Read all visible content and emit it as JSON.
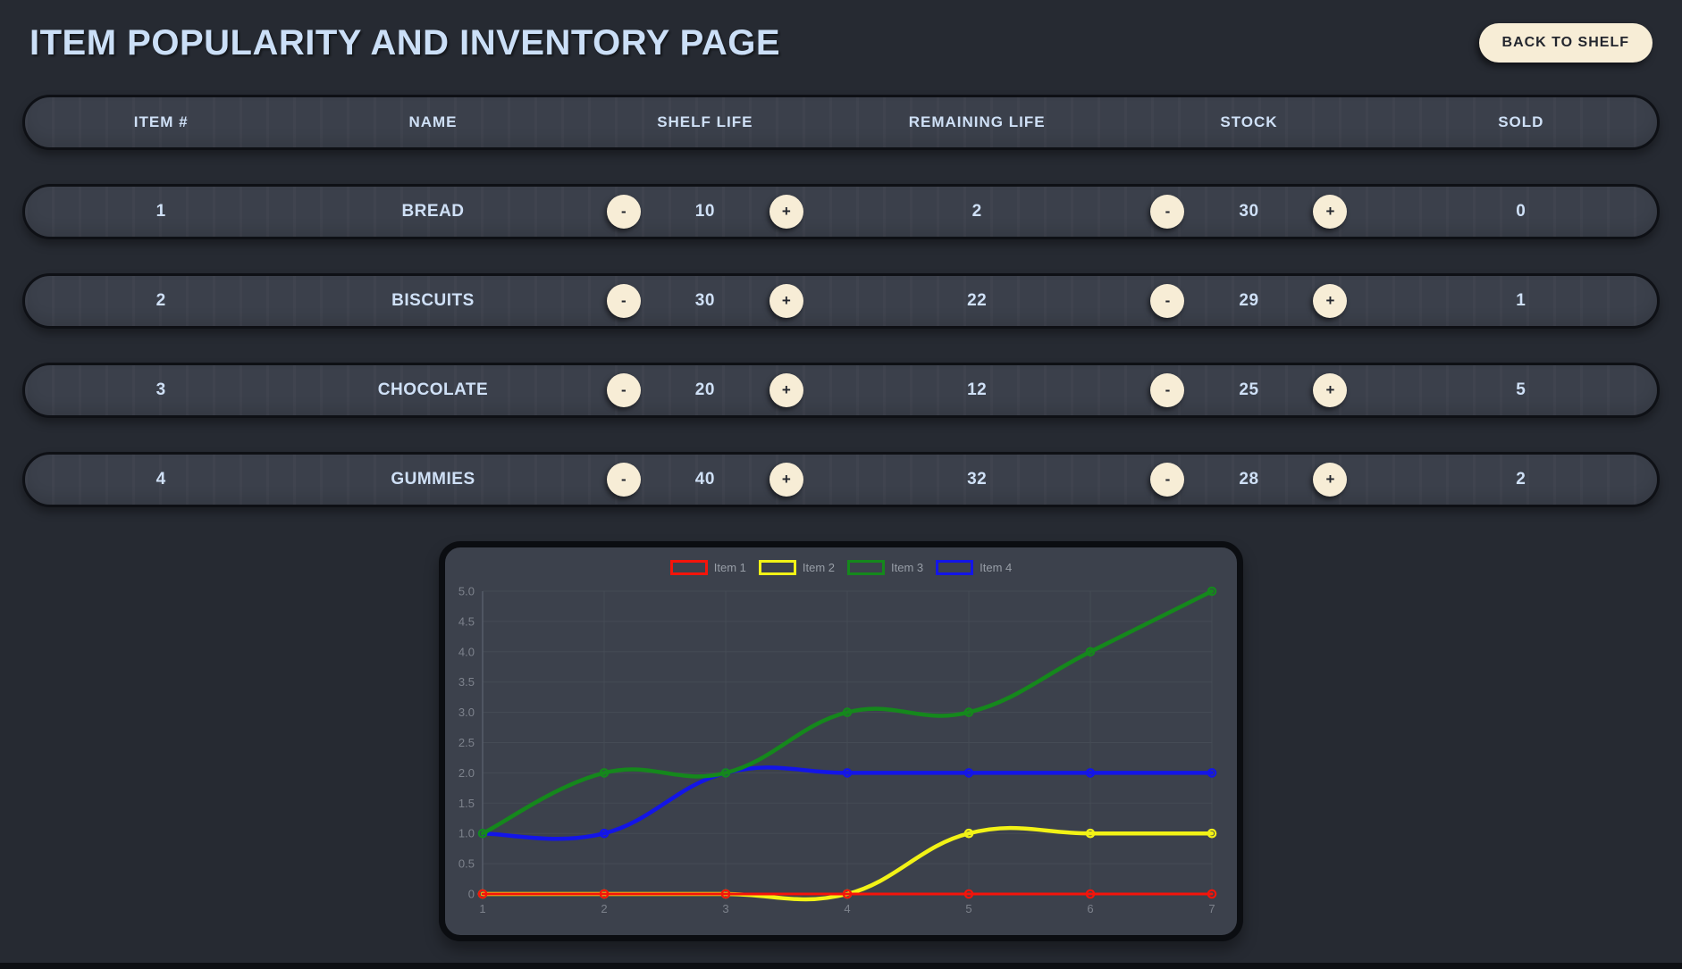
{
  "page": {
    "title": "ITEM POPULARITY AND INVENTORY PAGE",
    "back_button_label": "BACK TO SHELF"
  },
  "table": {
    "headers": [
      "ITEM #",
      "NAME",
      "SHELF LIFE",
      "REMAINING LIFE",
      "STOCK",
      "SOLD"
    ],
    "minus_label": "-",
    "plus_label": "+",
    "rows": [
      {
        "item": "1",
        "name": "BREAD",
        "shelf_life": "10",
        "remaining_life": "2",
        "stock": "30",
        "sold": "0"
      },
      {
        "item": "2",
        "name": "BISCUITS",
        "shelf_life": "30",
        "remaining_life": "22",
        "stock": "29",
        "sold": "1"
      },
      {
        "item": "3",
        "name": "CHOCOLATE",
        "shelf_life": "20",
        "remaining_life": "12",
        "stock": "25",
        "sold": "5"
      },
      {
        "item": "4",
        "name": "GUMMIES",
        "shelf_life": "40",
        "remaining_life": "32",
        "stock": "28",
        "sold": "2"
      }
    ]
  },
  "chart_data": {
    "type": "line",
    "x": [
      1,
      2,
      3,
      4,
      5,
      6,
      7
    ],
    "xticks": [
      "1",
      "2",
      "3",
      "4",
      "5",
      "6",
      "7"
    ],
    "yticks": [
      "0",
      "0.5",
      "1.0",
      "1.5",
      "2.0",
      "2.5",
      "3.0",
      "3.5",
      "4.0",
      "4.5",
      "5.0"
    ],
    "ylim": [
      0,
      5
    ],
    "grid": true,
    "legend_position": "top",
    "title": "",
    "xlabel": "",
    "ylabel": "",
    "series": [
      {
        "name": "Item 1",
        "color": "#f5140a",
        "line_width": 3,
        "values": [
          0,
          0,
          0,
          0,
          0,
          0,
          0
        ]
      },
      {
        "name": "Item 2",
        "color": "#f2f216",
        "line_width": 4.5,
        "values": [
          0,
          0,
          0,
          0,
          1,
          1,
          1
        ]
      },
      {
        "name": "Item 3",
        "color": "#15881c",
        "line_width": 4.5,
        "values": [
          1,
          2,
          2,
          3,
          3,
          4,
          5
        ]
      },
      {
        "name": "Item 4",
        "color": "#1315e8",
        "line_width": 4.5,
        "values": [
          1,
          1,
          2,
          2,
          2,
          2,
          2
        ]
      }
    ]
  },
  "colors": {
    "page_background": "#262a32",
    "panel_background": "#3b404b",
    "accent_cream": "#f7edd6",
    "heading_text": "#cbdff7",
    "axis_text": "#7d828c"
  }
}
